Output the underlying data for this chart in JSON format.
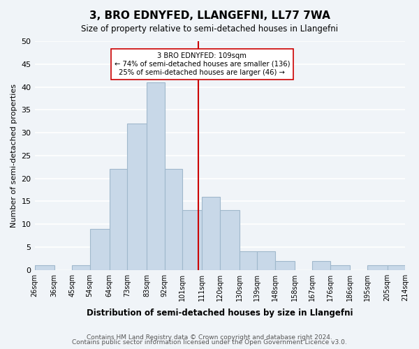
{
  "title": "3, BRO EDNYFED, LLANGEFNI, LL77 7WA",
  "subtitle": "Size of property relative to semi-detached houses in Llangefni",
  "xlabel": "Distribution of semi-detached houses by size in Llangefni",
  "ylabel": "Number of semi-detached properties",
  "bin_edges": [
    26,
    36,
    45,
    54,
    64,
    73,
    83,
    92,
    101,
    111,
    120,
    130,
    139,
    148,
    158,
    167,
    176,
    186,
    195,
    205,
    214
  ],
  "bin_labels": [
    "26sqm",
    "36sqm",
    "45sqm",
    "54sqm",
    "64sqm",
    "73sqm",
    "83sqm",
    "92sqm",
    "101sqm",
    "111sqm",
    "120sqm",
    "130sqm",
    "139sqm",
    "148sqm",
    "158sqm",
    "167sqm",
    "176sqm",
    "186sqm",
    "195sqm",
    "205sqm",
    "214sqm"
  ],
  "counts": [
    1,
    0,
    1,
    9,
    22,
    32,
    41,
    22,
    13,
    16,
    13,
    4,
    4,
    2,
    0,
    2,
    1,
    0,
    1,
    1
  ],
  "bar_color": "#c8d8e8",
  "bar_edge_color": "#a0b8cc",
  "property_value": 109,
  "property_bin_index": 9,
  "annotation_title": "3 BRO EDNYFED: 109sqm",
  "annotation_line1": "← 74% of semi-detached houses are smaller (136)",
  "annotation_line2": "25% of semi-detached houses are larger (46) →",
  "vline_color": "#cc0000",
  "annotation_box_color": "#ffffff",
  "annotation_box_edge": "#cc0000",
  "ylim": [
    0,
    50
  ],
  "footer1": "Contains HM Land Registry data © Crown copyright and database right 2024.",
  "footer2": "Contains public sector information licensed under the Open Government Licence v3.0.",
  "background_color": "#f0f4f8",
  "grid_color": "#ffffff"
}
